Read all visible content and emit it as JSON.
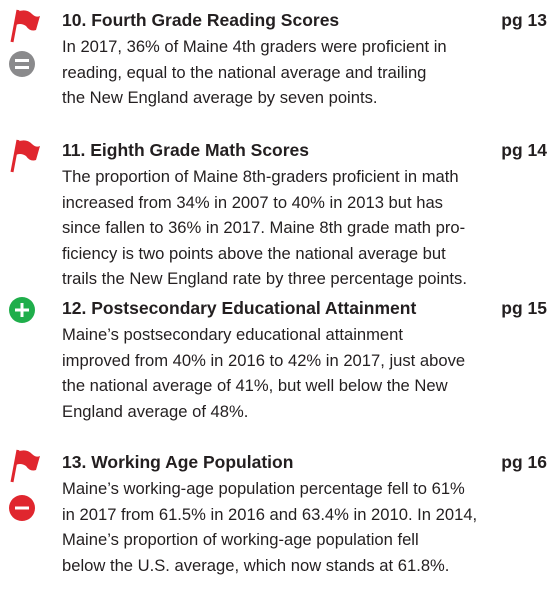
{
  "items": [
    {
      "title": "10. Fourth Grade Reading Scores",
      "page": "pg 13",
      "body": [
        "In 2017, 36% of Maine 4th graders were proficient in",
        "reading, equal to the national average and trailing",
        "the New England average by seven points."
      ]
    },
    {
      "title": "11. Eighth Grade Math Scores",
      "page": "pg 14",
      "body": [
        "The proportion of Maine 8th-graders proficient in math",
        "increased from 34% in 2007 to 40% in 2013 but has",
        "since fallen to 36% in 2017. Maine 8th grade math pro-",
        "ficiency is two points above the national average but",
        "trails the New England rate by three percentage points."
      ]
    },
    {
      "title": "12. Postsecondary Educational Attainment",
      "page": "pg 15",
      "body": [
        "Maine’s postsecondary educational attainment",
        "improved from 40% in 2016 to 42% in 2017, just above",
        "the national average of 41%, but well below the New",
        "England average of 48%."
      ]
    },
    {
      "title": "13. Working Age Population",
      "page": "pg 16",
      "body": [
        "Maine’s working-age population percentage fell to 61%",
        "in 2017 from 61.5% in 2016 and 63.4% in 2010. In 2014,",
        "Maine’s proportion of working-age population fell",
        "below the U.S. average, which now stands at 61.8%."
      ]
    }
  ]
}
